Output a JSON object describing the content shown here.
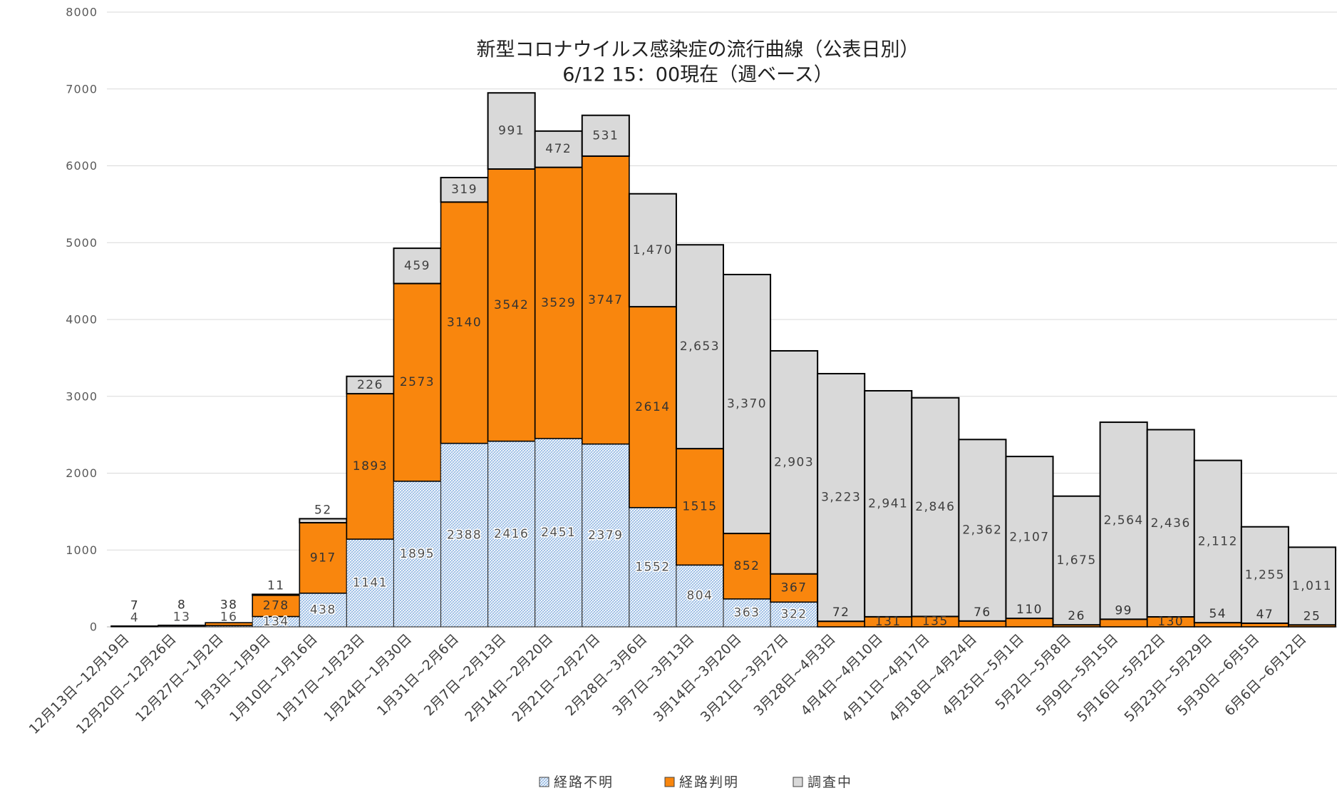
{
  "chart_data": {
    "type": "bar",
    "stacked": true,
    "title": "新型コロナウイルス感染症の流行曲線（公表日別）",
    "subtitle": "6/12 15：00現在（週ベース）",
    "ylim": [
      0,
      8000
    ],
    "yticks": [
      0,
      1000,
      2000,
      3000,
      4000,
      5000,
      6000,
      7000,
      8000
    ],
    "grid": true,
    "legend_position": "bottom",
    "categories": [
      "12月13日~12月19日",
      "12月20日~12月26日",
      "12月27日~1月2日",
      "1月3日~1月9日",
      "1月10日~1月16日",
      "1月17日~1月23日",
      "1月24日~1月30日",
      "1月31日~2月6日",
      "2月7日~2月13日",
      "2月14日~2月20日",
      "2月21日~2月27日",
      "2月28日~3月6日",
      "3月7日~3月13日",
      "3月14日~3月20日",
      "3月21日~3月27日",
      "3月28日~4月3日",
      "4月4日~4月10日",
      "4月11日~4月17日",
      "4月18日~4月24日",
      "4月25日~5月1日",
      "5月2日~5月8日",
      "5月9日~5月15日",
      "5月16日~5月22日",
      "5月23日~5月29日",
      "5月30日~6月5日",
      "6月6日~6月12日"
    ],
    "series": [
      {
        "name": "経路不明",
        "color": "#8DB4E2",
        "pattern": "hatched",
        "values": [
          4,
          13,
          16,
          134,
          438,
          1141,
          1895,
          2388,
          2416,
          2451,
          2379,
          1552,
          804,
          363,
          322,
          0,
          0,
          0,
          0,
          0,
          0,
          0,
          0,
          0,
          0,
          0
        ],
        "labels": [
          "4",
          "13",
          "16",
          "134",
          "438",
          "1141",
          "1895",
          "2388",
          "2416",
          "2451",
          "2379",
          "1552",
          "804",
          "363",
          "322",
          null,
          null,
          null,
          null,
          null,
          null,
          null,
          null,
          null,
          null,
          null
        ]
      },
      {
        "name": "経路判明",
        "color": "#F9860D",
        "values": [
          7,
          8,
          38,
          278,
          917,
          1893,
          2573,
          3140,
          3542,
          3529,
          3747,
          2614,
          1515,
          852,
          367,
          72,
          131,
          135,
          76,
          110,
          26,
          99,
          130,
          54,
          47,
          25
        ],
        "labels": [
          "7",
          "8",
          "38",
          "278",
          "917",
          "1893",
          "2573",
          "3140",
          "3542",
          "3529",
          "3747",
          "2614",
          "1515",
          "852",
          "367",
          "72",
          "131",
          "135",
          "76",
          "110",
          "26",
          "99",
          "130",
          "54",
          "47",
          "25"
        ]
      },
      {
        "name": "調査中",
        "color": "#D9D9D9",
        "values": [
          0,
          0,
          0,
          11,
          52,
          226,
          459,
          319,
          991,
          472,
          531,
          1470,
          2653,
          3370,
          2903,
          3223,
          2941,
          2846,
          2362,
          2107,
          1675,
          2564,
          2436,
          2112,
          1255,
          1011
        ],
        "labels": [
          null,
          null,
          null,
          "11",
          "52",
          "226",
          "459",
          "319",
          "991",
          "472",
          "531",
          "1,470",
          "2,653",
          "3,370",
          "2,903",
          "3,223",
          "2,941",
          "2,846",
          "2,362",
          "2,107",
          "1,675",
          "2,564",
          "2,436",
          "2,112",
          "1,255",
          "1,011"
        ]
      }
    ]
  }
}
